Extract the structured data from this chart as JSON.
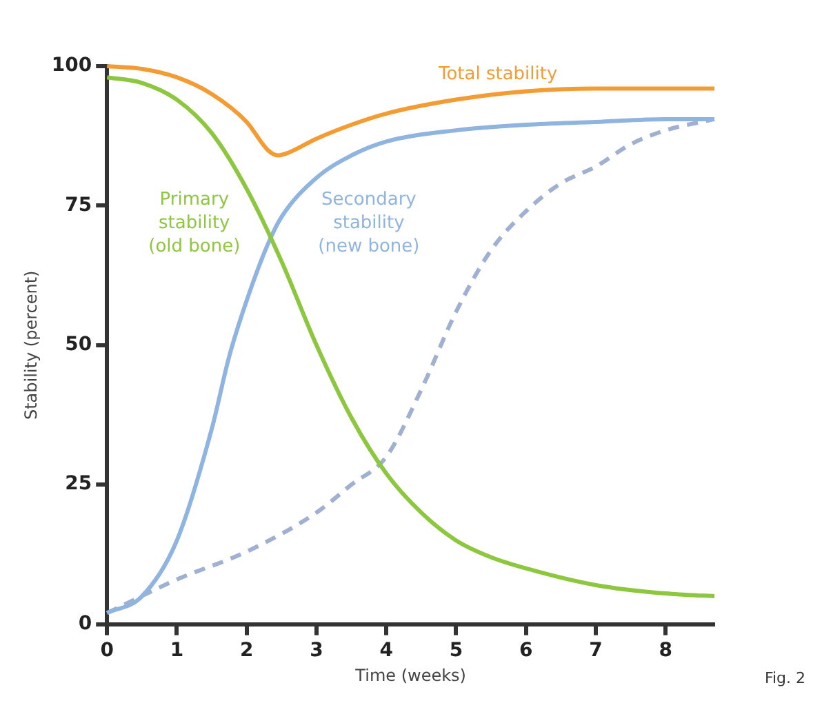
{
  "chart_data": {
    "type": "line",
    "xlabel": "Time (weeks)",
    "ylabel": "Stability (percent)",
    "xlim": [
      0,
      8.7
    ],
    "ylim": [
      0,
      100
    ],
    "xticks": [
      0,
      1,
      2,
      3,
      4,
      5,
      6,
      7,
      8
    ],
    "yticks": [
      0,
      25,
      50,
      75,
      100
    ],
    "grid": false,
    "legend": false,
    "marker": "none",
    "annotations": [
      "Fig. 2"
    ],
    "series": [
      {
        "name": "Total stability",
        "color": "#f39c34",
        "x": [
          0,
          0.5,
          1,
          1.5,
          2,
          2.3,
          2.45,
          2.6,
          3,
          3.5,
          4,
          5,
          6,
          7,
          8.7
        ],
        "values": [
          100,
          99.5,
          98,
          95,
          90,
          85,
          84,
          84.5,
          87,
          89.5,
          91.5,
          94,
          95.5,
          96,
          96
        ]
      },
      {
        "name": "Primary stability (old bone)",
        "color": "#8dc63f",
        "x": [
          0,
          0.5,
          1,
          1.5,
          2,
          2.5,
          3,
          3.5,
          4,
          4.5,
          5,
          5.5,
          6,
          7,
          8,
          8.7
        ],
        "values": [
          98,
          97,
          94,
          88,
          78,
          65,
          50,
          37,
          27,
          20,
          15,
          12,
          10,
          7,
          5.5,
          5
        ]
      },
      {
        "name": "Secondary stability (new bone)",
        "color": "#8fb4e0",
        "x": [
          0,
          0.5,
          1,
          1.5,
          1.75,
          2,
          2.3,
          2.5,
          3,
          3.5,
          4,
          5,
          6,
          7,
          8,
          8.7
        ],
        "values": [
          2,
          5,
          15,
          35,
          48,
          58,
          68,
          73,
          80,
          84,
          86.5,
          88.5,
          89.5,
          90,
          90.5,
          90.5
        ]
      },
      {
        "color": "#9fb0d0",
        "line_style": "dashed",
        "x": [
          0,
          1,
          2,
          3,
          3.5,
          4,
          4.5,
          5,
          5.5,
          6,
          6.5,
          7,
          7.5,
          8,
          8.7
        ],
        "values": [
          2,
          8,
          13,
          20,
          25,
          30,
          42,
          56,
          67,
          74,
          79,
          82,
          86,
          88.5,
          90.5
        ]
      }
    ]
  }
}
